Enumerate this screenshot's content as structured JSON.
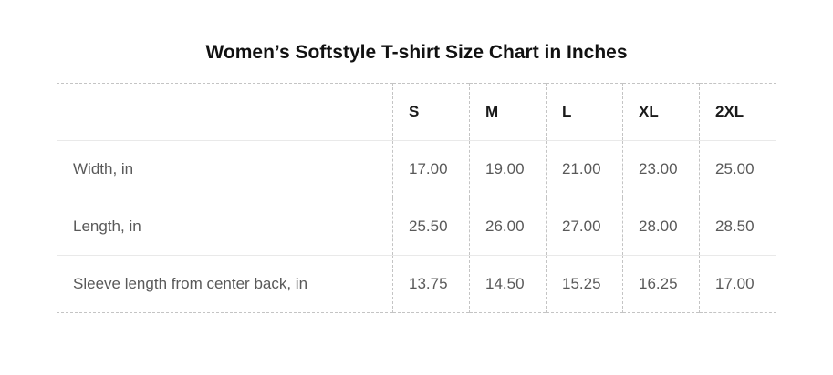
{
  "page": {
    "title": "Women’s Softstyle T-shirt Size Chart in Inches"
  },
  "table": {
    "column_headers": [
      "",
      "S",
      "M",
      "L",
      "XL",
      "2XL"
    ],
    "rows": [
      {
        "label": "Width, in",
        "values": [
          "17.00",
          "19.00",
          "21.00",
          "23.00",
          "25.00"
        ]
      },
      {
        "label": "Length, in",
        "values": [
          "25.50",
          "26.00",
          "27.00",
          "28.00",
          "28.50"
        ]
      },
      {
        "label": "Sleeve length from center back, in",
        "values": [
          "13.75",
          "14.50",
          "15.25",
          "16.25",
          "17.00"
        ]
      }
    ]
  },
  "colors": {
    "background": "#ffffff",
    "title_text": "#111111",
    "header_text": "#1a1a1a",
    "cell_text": "#595959",
    "dashed_border": "#c4c4c4",
    "row_divider": "#e9e9e9"
  },
  "chart_data": {
    "type": "table",
    "title": "Women’s Softstyle T-shirt Size Chart in Inches",
    "categories": [
      "S",
      "M",
      "L",
      "XL",
      "2XL"
    ],
    "series": [
      {
        "name": "Width, in",
        "values": [
          17.0,
          19.0,
          21.0,
          23.0,
          25.0
        ]
      },
      {
        "name": "Length, in",
        "values": [
          25.5,
          26.0,
          27.0,
          28.0,
          28.5
        ]
      },
      {
        "name": "Sleeve length from center back, in",
        "values": [
          13.75,
          14.5,
          15.25,
          16.25,
          17.0
        ]
      }
    ],
    "units": "inches",
    "layout": {
      "grid": "dashed-columns-solid-rows",
      "legend": "none"
    }
  }
}
